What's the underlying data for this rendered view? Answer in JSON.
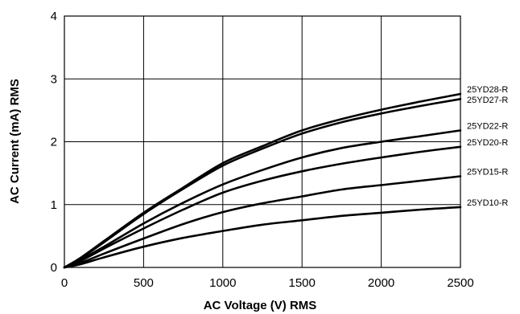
{
  "chart_data": {
    "type": "line",
    "xlabel": "AC Voltage (V) RMS",
    "ylabel": "AC Current (mA) RMS",
    "xlim": [
      0,
      2500
    ],
    "ylim": [
      0,
      4
    ],
    "xticks": [
      "0",
      "500",
      "1000",
      "1500",
      "2000",
      "2500"
    ],
    "yticks": [
      "0",
      "1",
      "2",
      "3",
      "4"
    ],
    "grid": true,
    "x": [
      0,
      100,
      250,
      500,
      750,
      1000,
      1250,
      1500,
      1750,
      2000,
      2250,
      2500
    ],
    "series": [
      {
        "name": "25YD28-R",
        "values": [
          0,
          0.15,
          0.42,
          0.87,
          1.27,
          1.66,
          1.93,
          2.18,
          2.36,
          2.51,
          2.64,
          2.76
        ]
      },
      {
        "name": "25YD27-R",
        "values": [
          0,
          0.14,
          0.4,
          0.85,
          1.25,
          1.62,
          1.89,
          2.13,
          2.31,
          2.45,
          2.57,
          2.68
        ]
      },
      {
        "name": "25YD22-R",
        "values": [
          0,
          0.12,
          0.33,
          0.7,
          1.03,
          1.32,
          1.55,
          1.75,
          1.9,
          2.0,
          2.09,
          2.18
        ]
      },
      {
        "name": "25YD20-R",
        "values": [
          0,
          0.1,
          0.3,
          0.62,
          0.92,
          1.19,
          1.38,
          1.53,
          1.65,
          1.75,
          1.84,
          1.92
        ]
      },
      {
        "name": "25YD15-R",
        "values": [
          0,
          0.07,
          0.22,
          0.46,
          0.69,
          0.88,
          1.02,
          1.13,
          1.24,
          1.31,
          1.38,
          1.45
        ]
      },
      {
        "name": "25YD10-R",
        "values": [
          0,
          0.05,
          0.16,
          0.33,
          0.47,
          0.58,
          0.68,
          0.75,
          0.82,
          0.87,
          0.92,
          0.96
        ]
      }
    ],
    "series_labels_text": [
      "25YD28-R",
      "25YD27-R",
      "25YD22-R",
      "25YD20-R",
      "25YD15-R",
      "25YD10-R"
    ]
  }
}
